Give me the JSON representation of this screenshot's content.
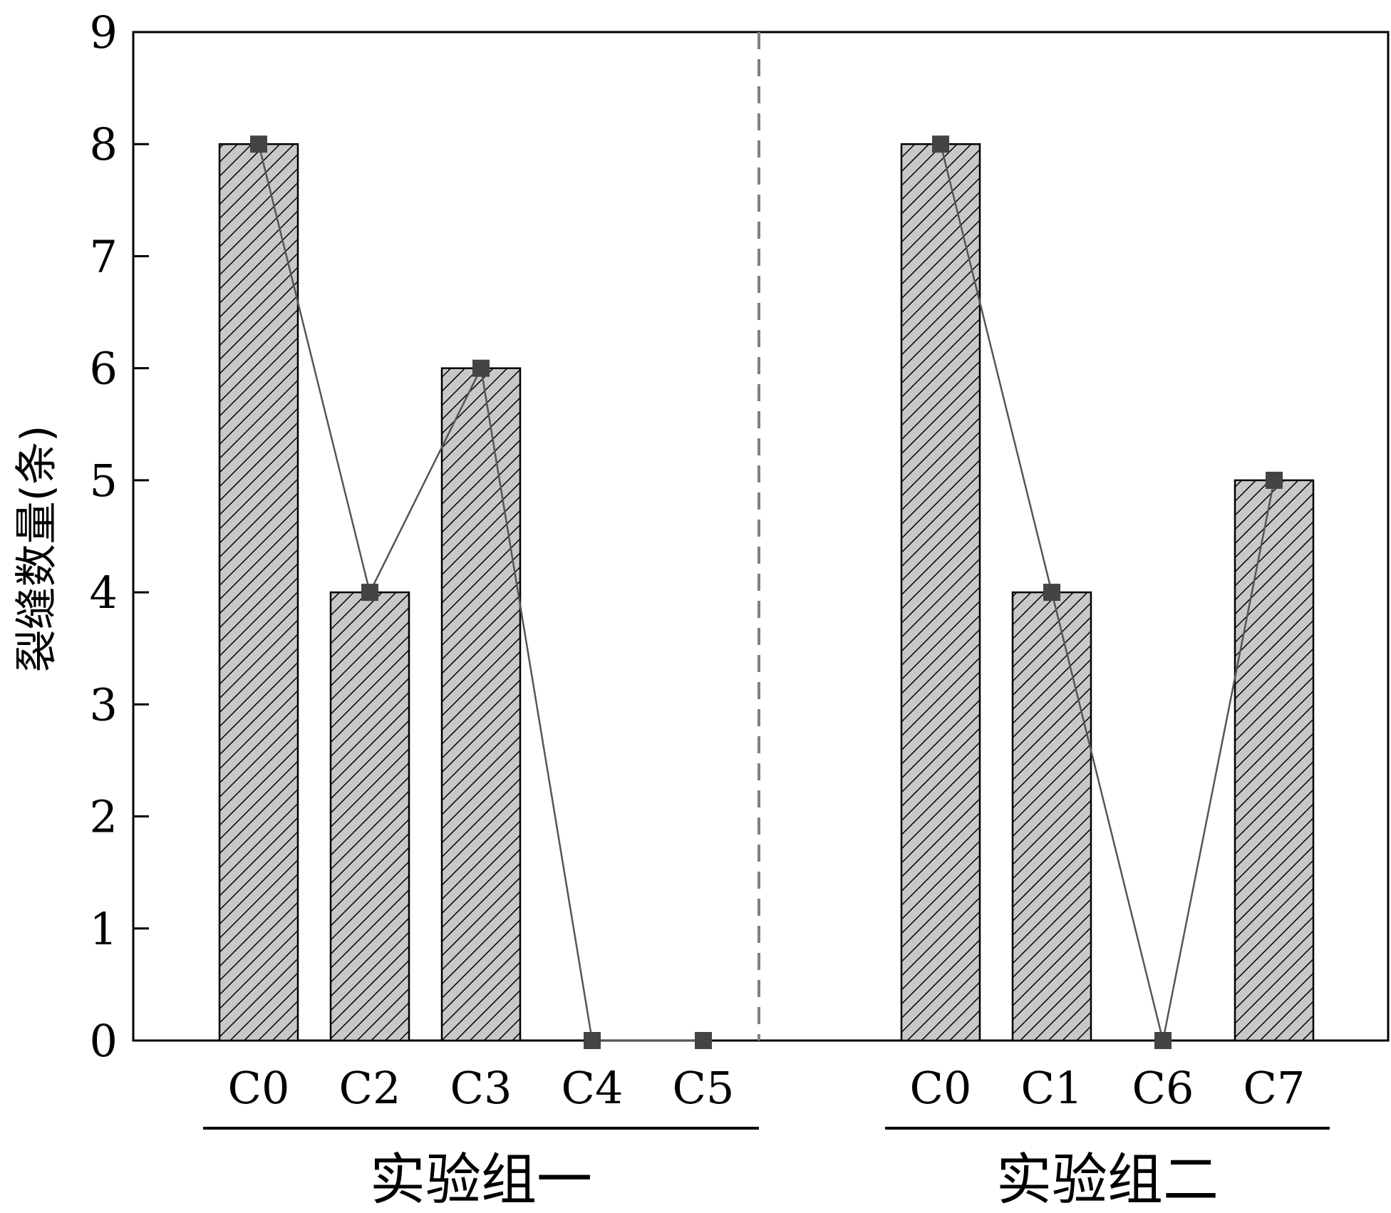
{
  "chart_data": {
    "type": "bar",
    "ylabel": "裂缝数量(条)",
    "ylim": [
      0,
      9
    ],
    "yticks": [
      0,
      1,
      2,
      3,
      4,
      5,
      6,
      7,
      8,
      9
    ],
    "grid": false,
    "bar_fill": "#c8c8c8",
    "hatch_color": "#000000",
    "marker_color": "#444444",
    "line_color": "#555555",
    "divider_color": "#808080",
    "groups": [
      {
        "name": "实验组一",
        "categories": [
          "C0",
          "C2",
          "C3",
          "C4",
          "C5"
        ],
        "values": [
          8,
          4,
          6,
          0,
          0
        ]
      },
      {
        "name": "实验组二",
        "categories": [
          "C0",
          "C1",
          "C6",
          "C7"
        ],
        "values": [
          8,
          4,
          0,
          5
        ]
      }
    ]
  }
}
